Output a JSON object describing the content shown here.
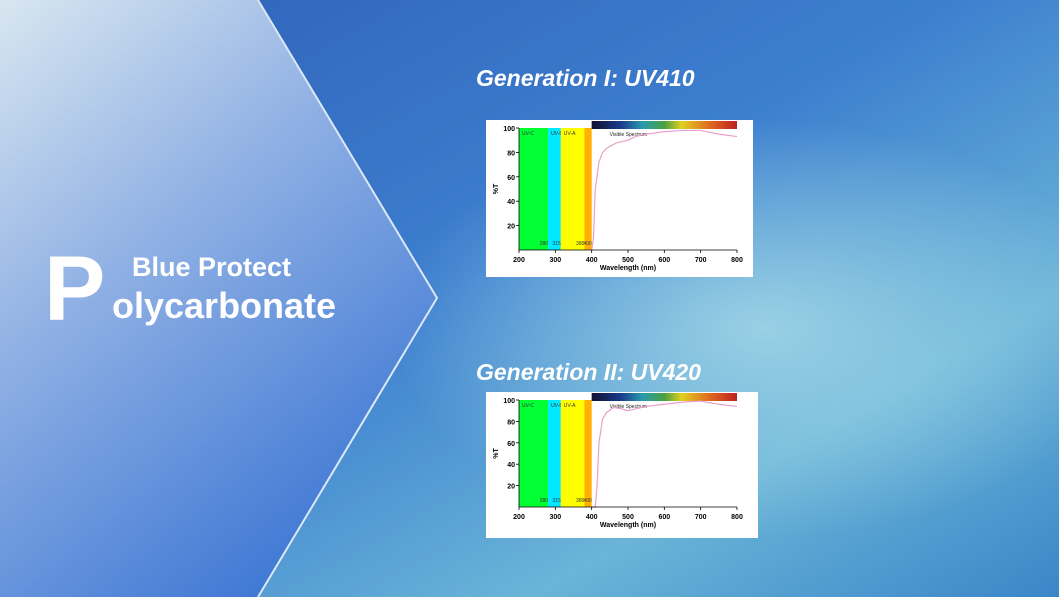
{
  "slide": {
    "big_letter": "P",
    "title_line1": "Blue Protect",
    "title_line2": "olycarbonate"
  },
  "chart_data": [
    {
      "type": "line",
      "title": "Generation I: UV410",
      "x_label": "Wavelength (nm)",
      "y_label": "%T",
      "xlim": [
        200,
        800
      ],
      "xticks": [
        200,
        300,
        400,
        500,
        600,
        700,
        800
      ],
      "ylim": [
        0,
        100
      ],
      "yticks": [
        20,
        40,
        60,
        80,
        100
      ],
      "color": "#e8a0c8",
      "bands": [
        {
          "name": "UV-C",
          "from": 200,
          "to": 280,
          "color": "#00ff33"
        },
        {
          "name": "UV-B",
          "from": 280,
          "to": 315,
          "color": "#00e8ff"
        },
        {
          "name": "UV-A",
          "from": 315,
          "to": 380,
          "color": "#ffff00"
        },
        {
          "from": 380,
          "to": 400,
          "color": "#ffb000"
        }
      ],
      "visible": {
        "label": "Visible Spectrum",
        "from": 400,
        "to": 800
      },
      "x": [
        400,
        405,
        410,
        420,
        430,
        440,
        450,
        470,
        500,
        520,
        550,
        600,
        650,
        700,
        750,
        800
      ],
      "values": [
        0,
        10,
        50,
        72,
        80,
        83,
        85,
        88,
        90,
        93,
        95,
        97,
        98,
        98,
        95,
        93
      ]
    },
    {
      "type": "line",
      "title": "Generation II: UV420",
      "x_label": "Wavelength (nm)",
      "y_label": "%T",
      "xlim": [
        200,
        800
      ],
      "xticks": [
        200,
        300,
        400,
        500,
        600,
        700,
        800
      ],
      "ylim": [
        0,
        100
      ],
      "yticks": [
        20,
        40,
        60,
        80,
        100
      ],
      "color": "#e8a0c8",
      "bands": [
        {
          "name": "UV-C",
          "from": 200,
          "to": 280,
          "color": "#00ff33"
        },
        {
          "name": "UV-B",
          "from": 280,
          "to": 315,
          "color": "#00e8ff"
        },
        {
          "name": "UV-A",
          "from": 315,
          "to": 380,
          "color": "#ffff00"
        },
        {
          "from": 380,
          "to": 400,
          "color": "#ffb000"
        }
      ],
      "visible": {
        "label": "Visible Spectrum",
        "from": 400,
        "to": 800
      },
      "x": [
        400,
        410,
        415,
        420,
        430,
        440,
        460,
        480,
        500,
        550,
        600,
        650,
        700,
        750,
        800
      ],
      "values": [
        0,
        0,
        20,
        60,
        82,
        88,
        93,
        92,
        90,
        94,
        96,
        98,
        99,
        96,
        94
      ]
    }
  ]
}
